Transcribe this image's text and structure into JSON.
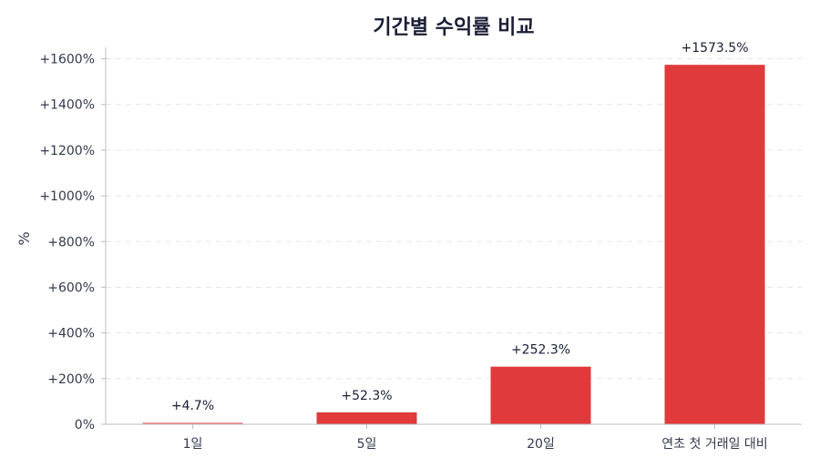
{
  "chart_data": {
    "type": "bar",
    "title": "기간별 수익률 비교",
    "xlabel": "",
    "ylabel": "%",
    "categories": [
      "1일",
      "5일",
      "20일",
      "연초 첫 거래일 대비"
    ],
    "values": [
      4.7,
      52.3,
      252.3,
      1573.5
    ],
    "data_labels": [
      "+4.7%",
      "+52.3%",
      "+252.3%",
      "+1573.5%"
    ],
    "ylim": [
      0,
      1650
    ],
    "yticks": [
      0,
      200,
      400,
      600,
      800,
      1000,
      1200,
      1400,
      1600
    ],
    "ytick_labels": [
      "0%",
      "+200%",
      "+400%",
      "+600%",
      "+800%",
      "+1000%",
      "+1200%",
      "+1400%",
      "+1600%"
    ],
    "grid": true,
    "bar_colors": [
      "#f08a8a",
      "#e03a3a",
      "#e03a3a",
      "#e03a3a"
    ]
  }
}
